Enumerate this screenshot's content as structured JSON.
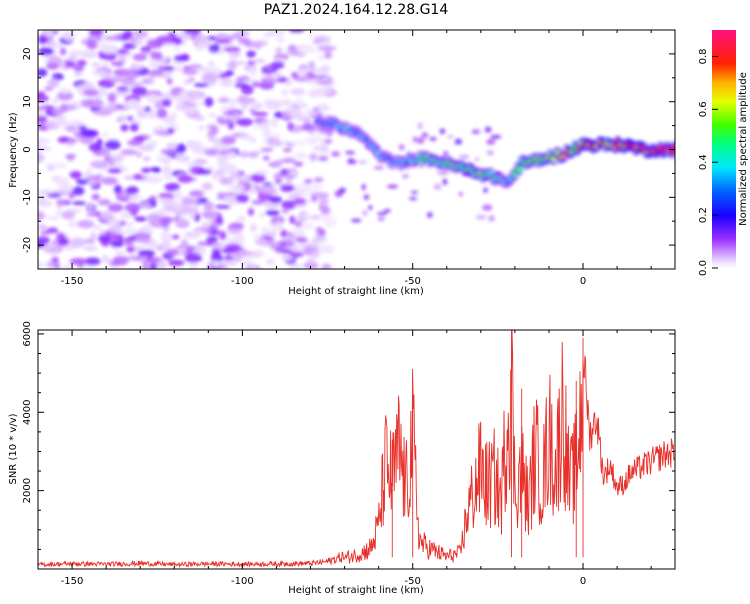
{
  "title": "PAZ1.2024.164.12.28.G14",
  "chart_data": [
    {
      "type": "heatmap",
      "xlabel": "Height of straight line (km)",
      "ylabel": "Frequency (Hz)",
      "xlim": [
        -160,
        27
      ],
      "ylim": [
        -25,
        25
      ],
      "xticks": [
        -150,
        -100,
        -50,
        0
      ],
      "xtick_labels": [
        "-150",
        "-100",
        "-50",
        "0"
      ],
      "yticks": [
        -20,
        -10,
        0,
        10,
        20
      ],
      "ytick_labels": [
        "-20",
        "-10",
        "0",
        "10",
        "20"
      ],
      "colorbar": {
        "label": "Normalized spectral amplitude",
        "range": [
          0.0,
          0.9
        ],
        "ticks": [
          0.0,
          0.2,
          0.4,
          0.6,
          0.8
        ],
        "tick_labels": [
          "0.0",
          "0.2",
          "0.4",
          "0.6",
          "0.8"
        ],
        "colormap": "rainbow (white-violet-blue-cyan-green-yellow-red-pink)"
      },
      "noise_region": {
        "x": [
          -160,
          -78
        ],
        "y": [
          -25,
          25
        ],
        "amplitude": [
          0.02,
          0.15
        ]
      },
      "signal_ridge": {
        "x": [
          -78,
          -72,
          -65,
          -60,
          -55,
          -50,
          -45,
          -40,
          -35,
          -30,
          -25,
          -22,
          -18,
          -12,
          -6,
          0,
          6,
          12,
          18,
          27
        ],
        "y": [
          6,
          5,
          3,
          -1,
          -3,
          -2,
          -2,
          -3,
          -4,
          -5,
          -6,
          -7,
          -3,
          -2,
          -1,
          1,
          1,
          1,
          0,
          0
        ],
        "amplitude": [
          0.3,
          0.4,
          0.35,
          0.35,
          0.3,
          0.4,
          0.5,
          0.5,
          0.55,
          0.55,
          0.45,
          0.4,
          0.55,
          0.6,
          0.65,
          0.75,
          0.8,
          0.8,
          0.85,
          0.9
        ]
      },
      "grid": false
    },
    {
      "type": "line",
      "xlabel": "Height of straight line (km)",
      "ylabel": "SNR (10 * v/v)",
      "xlim": [
        -160,
        27
      ],
      "ylim": [
        0,
        6100
      ],
      "xticks": [
        -150,
        -100,
        -50,
        0
      ],
      "xtick_labels": [
        "-150",
        "-100",
        "-50",
        "0"
      ],
      "yticks": [
        2000,
        4000,
        6000
      ],
      "ytick_labels": [
        "2000",
        "4000",
        "6000"
      ],
      "color": "#e8302a",
      "grid": false,
      "series": [
        {
          "x": [
            -160,
            -150,
            -140,
            -130,
            -120,
            -110,
            -100,
            -90,
            -80,
            -75,
            -70,
            -65,
            -62,
            -60,
            -58,
            -56,
            -54,
            -52,
            -50,
            -48,
            -46,
            -44,
            -42,
            -40,
            -38,
            -36,
            -34,
            -32,
            -30,
            -28,
            -26,
            -24,
            -22,
            -21,
            -20,
            -18,
            -16,
            -14,
            -12,
            -10,
            -8,
            -6,
            -4,
            -2,
            0,
            2,
            4,
            6,
            8,
            10,
            12,
            14,
            16,
            18,
            20,
            22,
            24,
            27
          ],
          "y": [
            120,
            140,
            130,
            150,
            120,
            140,
            130,
            140,
            150,
            200,
            350,
            500,
            700,
            1400,
            3300,
            2800,
            3800,
            2500,
            4200,
            900,
            700,
            600,
            500,
            400,
            450,
            500,
            1800,
            2500,
            3200,
            2600,
            2900,
            2200,
            5200,
            6100,
            2500,
            3200,
            2000,
            3800,
            2700,
            4300,
            3100,
            5200,
            2600,
            3300,
            5900,
            3600,
            4100,
            2500,
            2800,
            2200,
            2300,
            2600,
            2700,
            2800,
            2900,
            3000,
            3100,
            3150
          ]
        }
      ]
    }
  ]
}
